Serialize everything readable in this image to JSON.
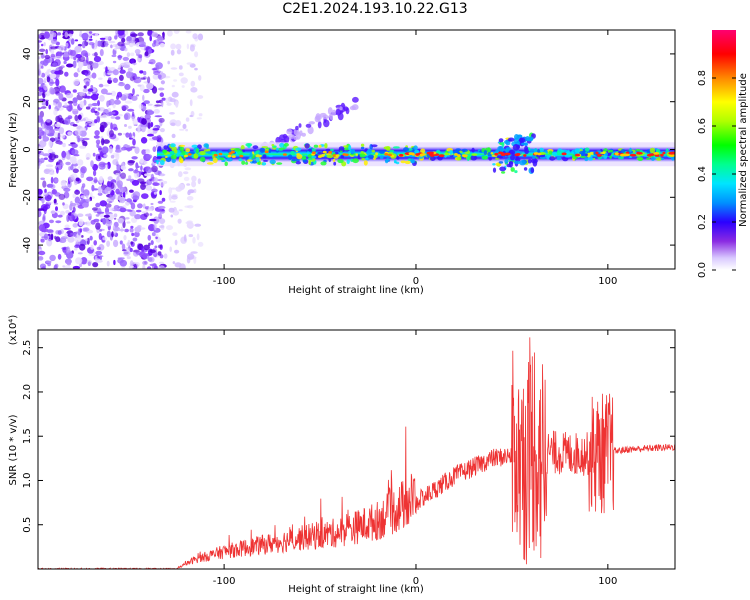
{
  "chart_data": [
    {
      "type": "heatmap",
      "title": "C2E1.2024.193.10.22.G13",
      "xlabel": "Height of straight line (km)",
      "ylabel": "Frequency (Hz)",
      "xlim": [
        -197,
        135
      ],
      "ylim": [
        -50,
        50
      ],
      "xticks": [
        -100,
        0,
        100
      ],
      "yticks": [
        -40,
        -20,
        0,
        20,
        40
      ],
      "colorbar": {
        "label": "Normalized spectral amplitude",
        "range": [
          0,
          1
        ],
        "ticks": [
          "0.0",
          "0.2",
          "0.4",
          "0.6",
          "0.8"
        ]
      },
      "features": {
        "noise_region_x": [
          -197,
          -120
        ],
        "signal_start_x": -135,
        "signal_center_frequency": -2,
        "weak_branch": {
          "x": [
            -80,
            -30
          ],
          "y": [
            0,
            20
          ]
        }
      }
    },
    {
      "type": "line",
      "xlabel": "Height of straight line (km)",
      "ylabel": "SNR (10 * v/v)",
      "scale_label": "(x10⁴)",
      "xlim": [
        -197,
        135
      ],
      "ylim": [
        0,
        2.7
      ],
      "xticks": [
        -100,
        0,
        100
      ],
      "yticks": [
        "0.5",
        "1.0",
        "1.5",
        "2.0",
        "2.5"
      ],
      "ytick_values": [
        0.5,
        1.0,
        1.5,
        2.0,
        2.5
      ],
      "series": [
        {
          "color": "#ee3333",
          "profile": {
            "x": [
              -197,
              -125,
              -115,
              -100,
              -80,
              -60,
              -40,
              -20,
              -10,
              0,
              10,
              20,
              30,
              40,
              50,
              55,
              70,
              80,
              95,
              100,
              110,
              135
            ],
            "y": [
              0.0,
              0.0,
              0.1,
              0.18,
              0.25,
              0.32,
              0.38,
              0.5,
              0.62,
              0.75,
              0.9,
              1.05,
              1.15,
              1.25,
              1.28,
              1.3,
              1.32,
              1.3,
              1.3,
              1.32,
              1.35,
              1.38
            ]
          }
        }
      ]
    }
  ]
}
